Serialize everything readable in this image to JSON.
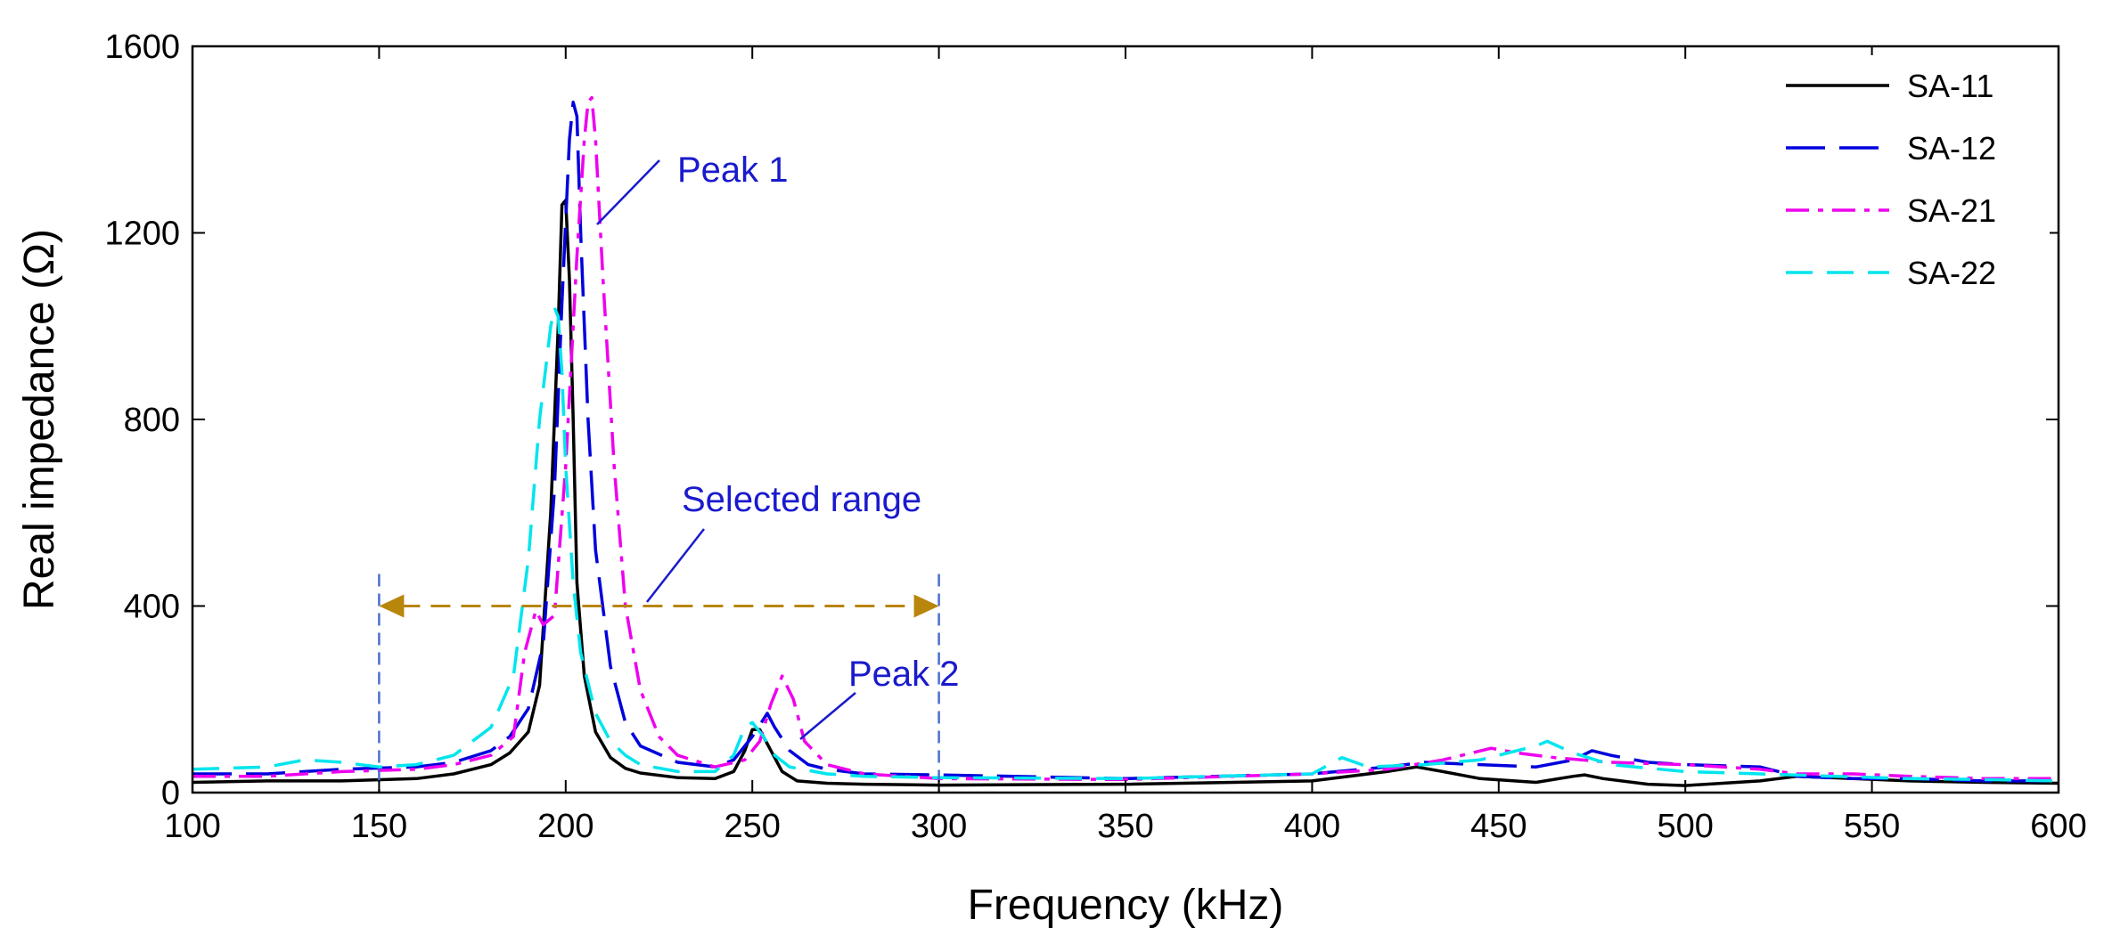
{
  "chart_data": {
    "type": "line",
    "title": "",
    "xlabel": "Frequency (kHz)",
    "ylabel": "Real impedance (Ω)",
    "xlim": [
      100,
      600
    ],
    "ylim": [
      0,
      1600
    ],
    "xticks": [
      100,
      150,
      200,
      250,
      300,
      350,
      400,
      450,
      500,
      550,
      600
    ],
    "yticks": [
      0,
      400,
      800,
      1200,
      1600
    ],
    "grid": false,
    "legend_position": "top-right",
    "series": [
      {
        "name": "SA-11",
        "color": "#000000",
        "dash": "solid",
        "x": [
          100,
          120,
          140,
          160,
          170,
          180,
          185,
          190,
          193,
          196,
          198,
          199,
          200,
          201,
          202,
          203,
          205,
          208,
          212,
          216,
          220,
          230,
          240,
          245,
          248,
          250,
          252,
          255,
          258,
          262,
          270,
          280,
          300,
          350,
          400,
          420,
          428,
          435,
          445,
          460,
          470,
          473,
          478,
          490,
          500,
          520,
          530,
          545,
          560,
          580,
          600
        ],
        "y": [
          22,
          25,
          25,
          30,
          40,
          60,
          85,
          130,
          230,
          600,
          1000,
          1260,
          1270,
          1100,
          800,
          450,
          250,
          130,
          75,
          52,
          42,
          32,
          30,
          45,
          90,
          135,
          135,
          90,
          45,
          25,
          20,
          18,
          16,
          18,
          25,
          45,
          55,
          45,
          30,
          22,
          35,
          38,
          30,
          18,
          15,
          25,
          35,
          30,
          25,
          22,
          20
        ]
      },
      {
        "name": "SA-12",
        "color": "#0000dd",
        "dash": "long",
        "x": [
          100,
          120,
          140,
          160,
          170,
          180,
          185,
          190,
          194,
          197,
          199,
          201,
          202,
          203,
          204,
          206,
          208,
          212,
          216,
          220,
          230,
          240,
          245,
          250,
          254,
          256,
          260,
          265,
          270,
          280,
          300,
          350,
          400,
          420,
          430,
          445,
          460,
          470,
          475,
          480,
          490,
          500,
          520,
          530,
          545,
          560,
          580,
          600
        ],
        "y": [
          40,
          40,
          50,
          55,
          65,
          90,
          120,
          180,
          320,
          650,
          1050,
          1400,
          1480,
          1450,
          1200,
          800,
          520,
          270,
          150,
          100,
          65,
          55,
          70,
          120,
          170,
          140,
          90,
          60,
          50,
          40,
          38,
          30,
          40,
          55,
          65,
          60,
          55,
          70,
          90,
          80,
          65,
          60,
          55,
          35,
          30,
          30,
          25,
          25
        ]
      },
      {
        "name": "SA-21",
        "color": "#ee00ee",
        "dash": "dashdot",
        "x": [
          100,
          120,
          140,
          160,
          170,
          180,
          186,
          189,
          192,
          194,
          197,
          200,
          203,
          205,
          206,
          207,
          208,
          210,
          213,
          216,
          220,
          225,
          230,
          240,
          248,
          252,
          255,
          258,
          261,
          264,
          270,
          280,
          300,
          350,
          400,
          420,
          435,
          448,
          455,
          465,
          480,
          500,
          520,
          530,
          545,
          560,
          580,
          600
        ],
        "y": [
          35,
          35,
          45,
          50,
          60,
          80,
          120,
          300,
          390,
          360,
          380,
          700,
          1150,
          1400,
          1480,
          1490,
          1400,
          1100,
          700,
          400,
          220,
          120,
          80,
          55,
          70,
          110,
          190,
          250,
          200,
          110,
          60,
          40,
          30,
          28,
          40,
          50,
          70,
          95,
          85,
          75,
          65,
          60,
          50,
          40,
          40,
          35,
          30,
          30
        ]
      },
      {
        "name": "SA-22",
        "color": "#00e5ee",
        "dash": "dash",
        "x": [
          100,
          120,
          130,
          140,
          150,
          160,
          170,
          180,
          186,
          190,
          193,
          196,
          197,
          198,
          199,
          200,
          202,
          204,
          208,
          212,
          216,
          220,
          230,
          240,
          245,
          248,
          250,
          253,
          256,
          260,
          270,
          280,
          300,
          350,
          400,
          408,
          415,
          430,
          445,
          460,
          463,
          470,
          480,
          500,
          520,
          540,
          560,
          580,
          600
        ],
        "y": [
          50,
          55,
          70,
          65,
          55,
          60,
          80,
          140,
          250,
          500,
          800,
          1000,
          1040,
          1020,
          900,
          700,
          450,
          300,
          170,
          110,
          80,
          60,
          45,
          45,
          80,
          140,
          150,
          120,
          80,
          55,
          40,
          35,
          32,
          30,
          40,
          75,
          55,
          60,
          70,
          100,
          110,
          85,
          60,
          45,
          40,
          35,
          30,
          28,
          25
        ]
      }
    ],
    "annotations": {
      "peak1": "Peak 1",
      "peak2": "Peak 2",
      "selected_range": "Selected range",
      "range_start": 150,
      "range_end": 300,
      "range_level": 400,
      "label_color": "#1a1acc",
      "arrow_color": "#b8860b",
      "vline_color": "#4a6fd0"
    }
  }
}
